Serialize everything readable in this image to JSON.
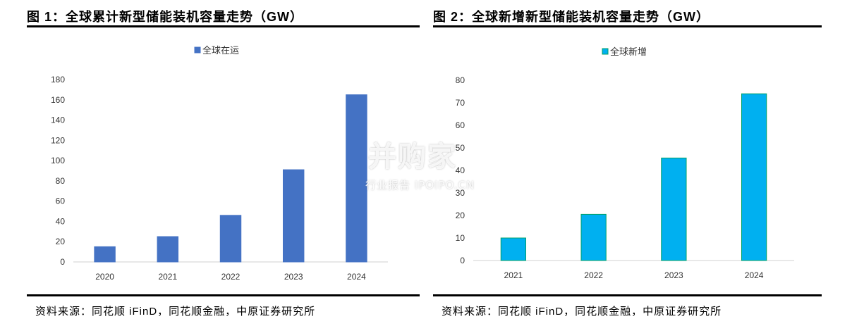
{
  "figures": [
    {
      "title": "图 1：全球累计新型储能装机容量走势（GW）",
      "source": "资料来源：同花顺 iFinD，同花顺金融，中原证券研究所"
    },
    {
      "title": "图 2：全球新增新型储能装机容量走势（GW）",
      "source": "资料来源：同花顺 iFinD，同花顺金融，中原证券研究所"
    }
  ],
  "watermark": {
    "main": "并购家",
    "sub": "行业报告 IPOIPO.CN"
  },
  "chart_data": [
    {
      "type": "bar",
      "categories": [
        "2020",
        "2021",
        "2022",
        "2023",
        "2024"
      ],
      "series": [
        {
          "name": "全球在运",
          "values": [
            15,
            25,
            46,
            91,
            165
          ]
        }
      ],
      "ylim": [
        0,
        180
      ],
      "yticks": [
        0,
        20,
        40,
        60,
        80,
        100,
        120,
        140,
        160,
        180
      ],
      "grid": false,
      "legend": "top-center",
      "colors": {
        "fill": "#4472C4",
        "stroke": "#4472C4"
      }
    },
    {
      "type": "bar",
      "categories": [
        "2021",
        "2022",
        "2023",
        "2024"
      ],
      "series": [
        {
          "name": "全球新增",
          "values": [
            10,
            20.5,
            45.5,
            74
          ]
        }
      ],
      "ylim": [
        0,
        80
      ],
      "yticks": [
        0,
        10,
        20,
        30,
        40,
        50,
        60,
        70,
        80
      ],
      "grid": false,
      "legend": "top-center",
      "colors": {
        "fill": "#00B0F0",
        "stroke": "#00A067"
      }
    }
  ]
}
